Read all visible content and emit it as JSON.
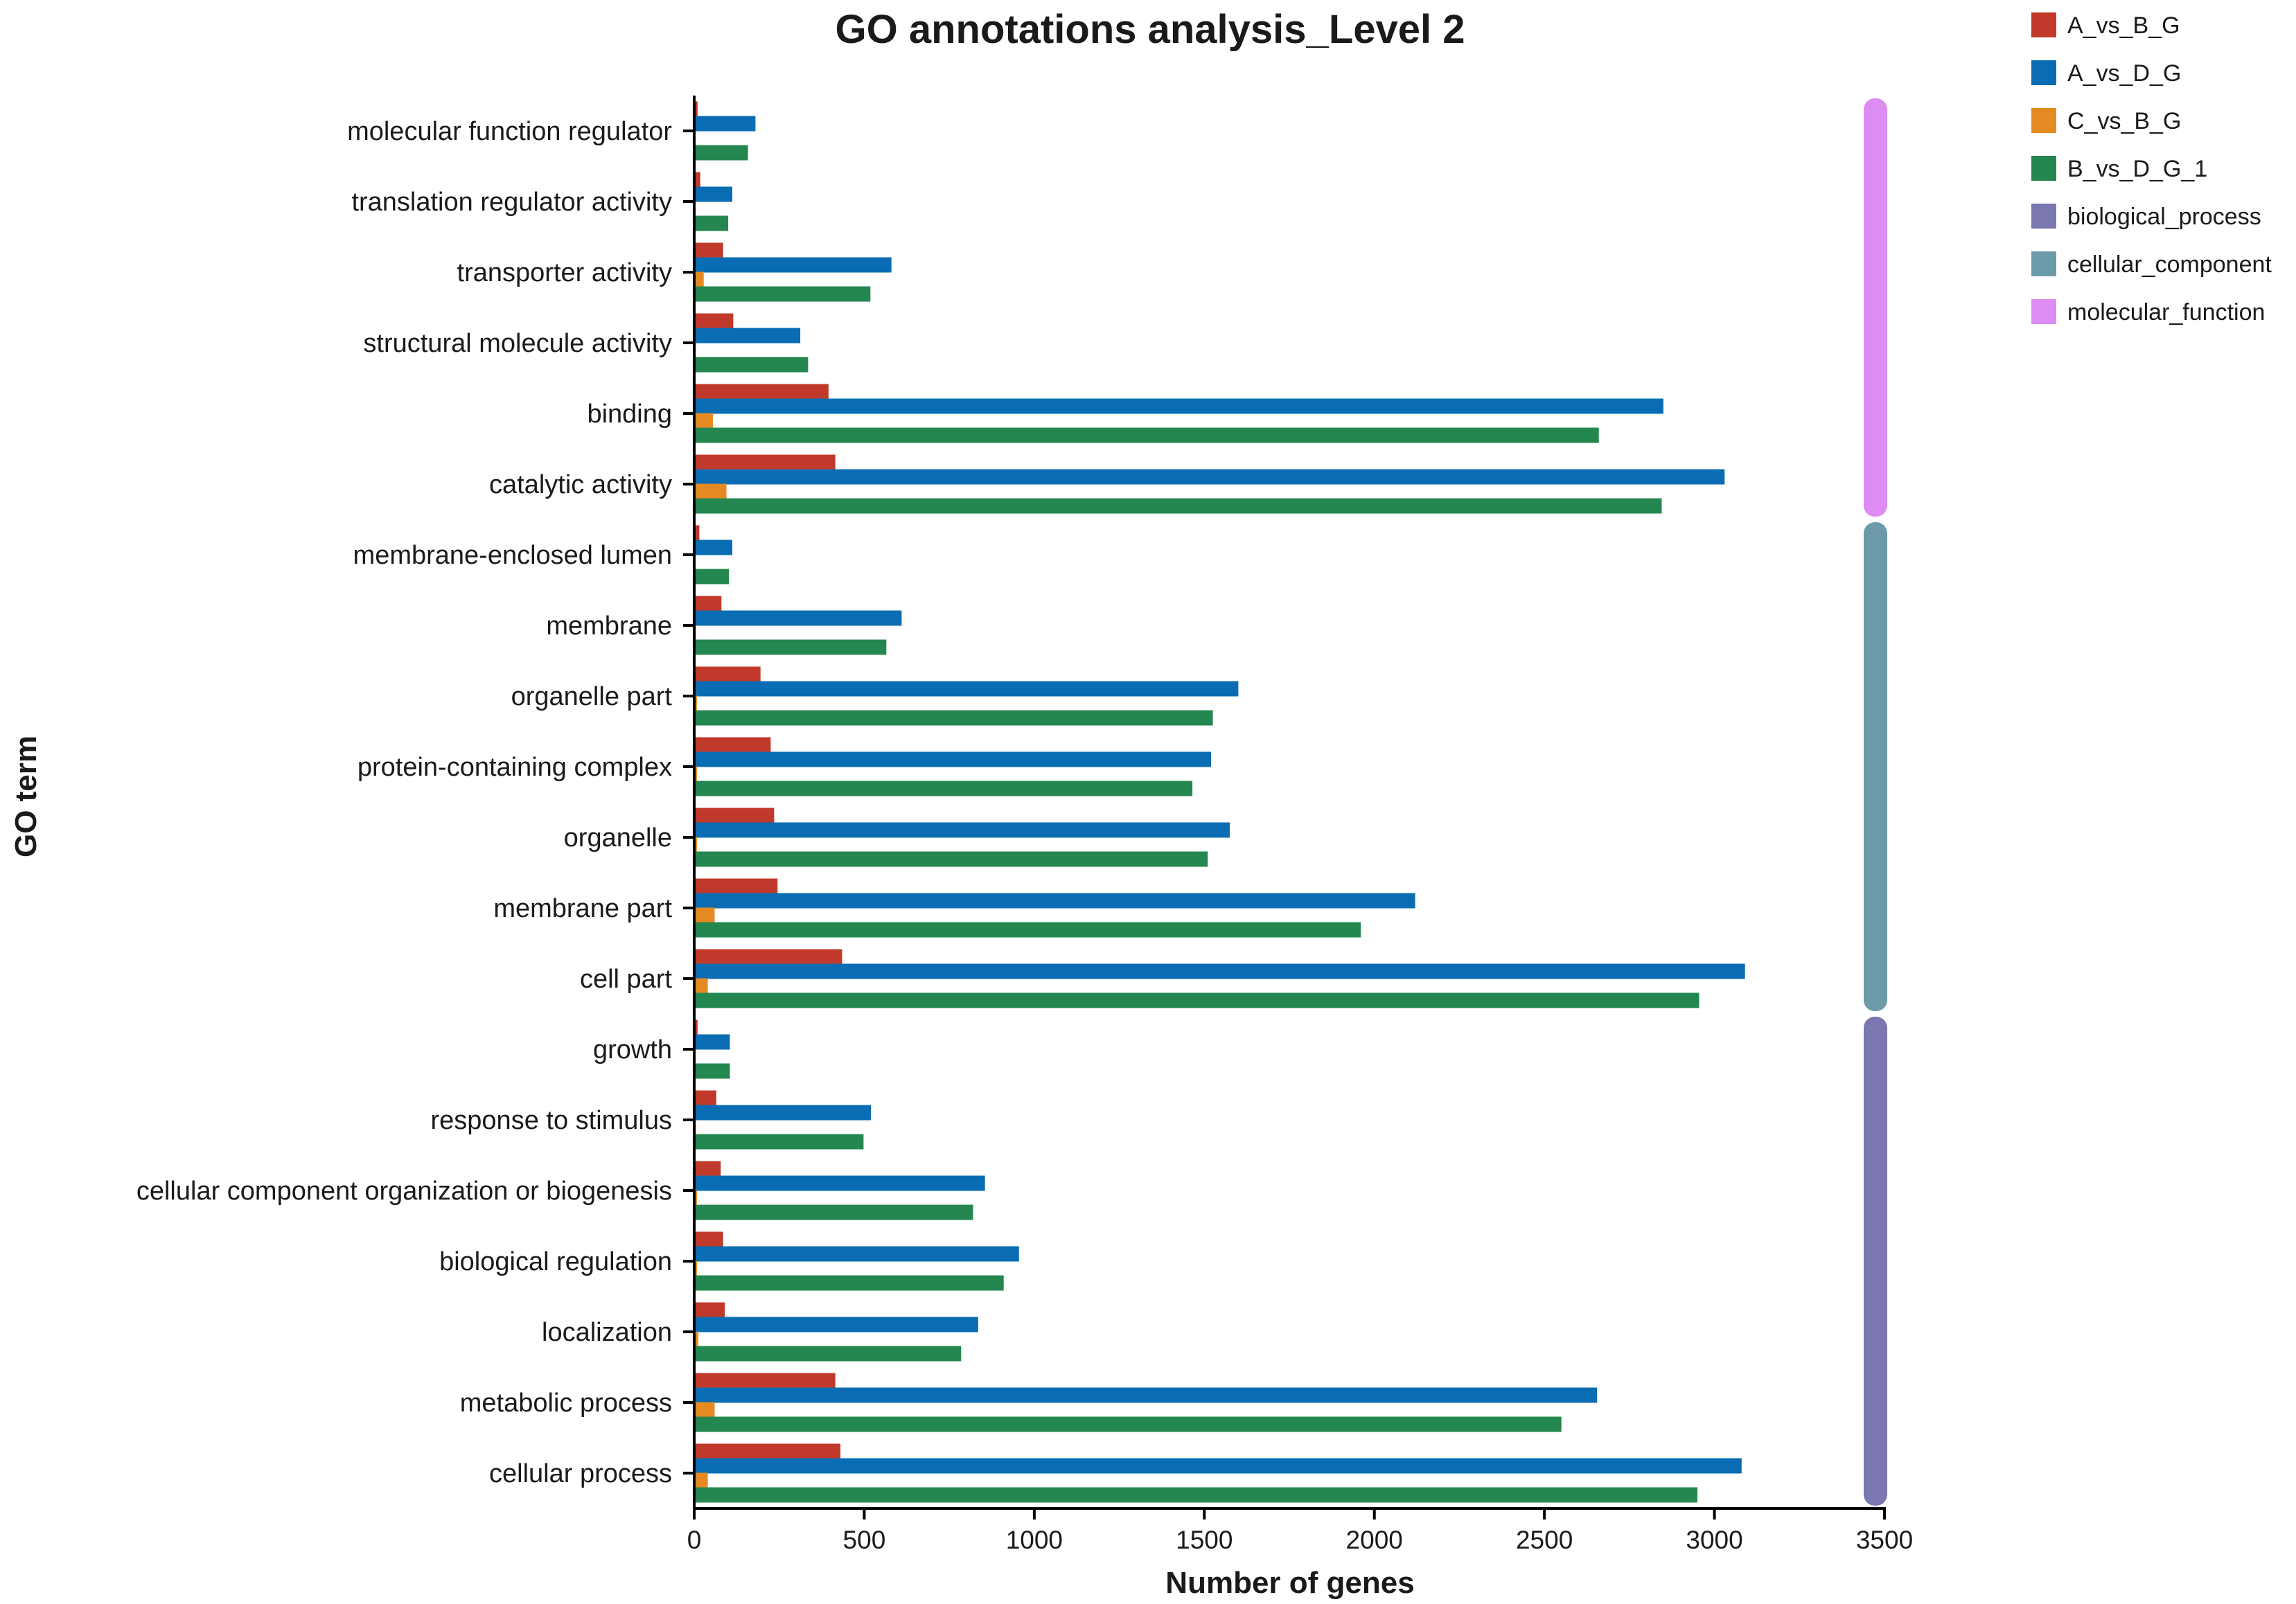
{
  "chart_data": {
    "type": "bar",
    "orientation": "horizontal",
    "title": "GO annotations analysis_Level 2",
    "xlabel": "Number of genes",
    "ylabel": "GO term",
    "xlim": [
      0,
      3500
    ],
    "xticks": [
      0,
      500,
      1000,
      1500,
      2000,
      2500,
      3000,
      3500
    ],
    "grid": false,
    "legend_position": "top-right",
    "categories": [
      "molecular function regulator",
      "translation regulator activity",
      "transporter activity",
      "structural molecule activity",
      "binding",
      "catalytic activity",
      "membrane-enclosed lumen",
      "membrane",
      "organelle part",
      "protein-containing complex",
      "organelle",
      "membrane part",
      "cell part",
      "growth",
      "response to stimulus",
      "cellular component organization or biogenesis",
      "biological regulation",
      "localization",
      "metabolic process",
      "cellular process"
    ],
    "series": [
      {
        "name": "A_vs_B_G",
        "color": "#c0392b",
        "values": [
          10,
          18,
          85,
          115,
          395,
          415,
          15,
          80,
          195,
          225,
          235,
          245,
          435,
          10,
          65,
          78,
          85,
          90,
          415,
          430
        ]
      },
      {
        "name": "A_vs_D_G",
        "color": "#0a6db3",
        "values": [
          180,
          112,
          580,
          312,
          2850,
          3030,
          112,
          610,
          1600,
          1520,
          1575,
          2120,
          3090,
          105,
          520,
          855,
          955,
          835,
          2655,
          3080
        ]
      },
      {
        "name": "C_vs_B_G",
        "color": "#e58a23",
        "values": [
          3,
          2,
          28,
          5,
          55,
          95,
          2,
          5,
          8,
          8,
          8,
          60,
          40,
          2,
          5,
          8,
          8,
          12,
          60,
          40
        ]
      },
      {
        "name": "B_vs_D_G_1",
        "color": "#23874f",
        "values": [
          158,
          100,
          518,
          335,
          2660,
          2845,
          102,
          565,
          1525,
          1465,
          1510,
          1960,
          2955,
          105,
          498,
          820,
          910,
          785,
          2550,
          2950
        ]
      }
    ],
    "groups": [
      {
        "name": "molecular_function",
        "color": "#dc8cf2",
        "from": 0,
        "to": 5
      },
      {
        "name": "cellular_component",
        "color": "#6c9aa8",
        "from": 6,
        "to": 12
      },
      {
        "name": "biological_process",
        "color": "#7b77b0",
        "from": 13,
        "to": 19
      }
    ],
    "legend": [
      {
        "label": "A_vs_B_G",
        "color": "#c0392b"
      },
      {
        "label": "A_vs_D_G",
        "color": "#0a6db3"
      },
      {
        "label": "C_vs_B_G",
        "color": "#e58a23"
      },
      {
        "label": "B_vs_D_G_1",
        "color": "#23874f"
      },
      {
        "label": "biological_process",
        "color": "#7b77b0"
      },
      {
        "label": "cellular_component",
        "color": "#6c9aa8"
      },
      {
        "label": "molecular_function",
        "color": "#dc8cf2"
      }
    ]
  }
}
